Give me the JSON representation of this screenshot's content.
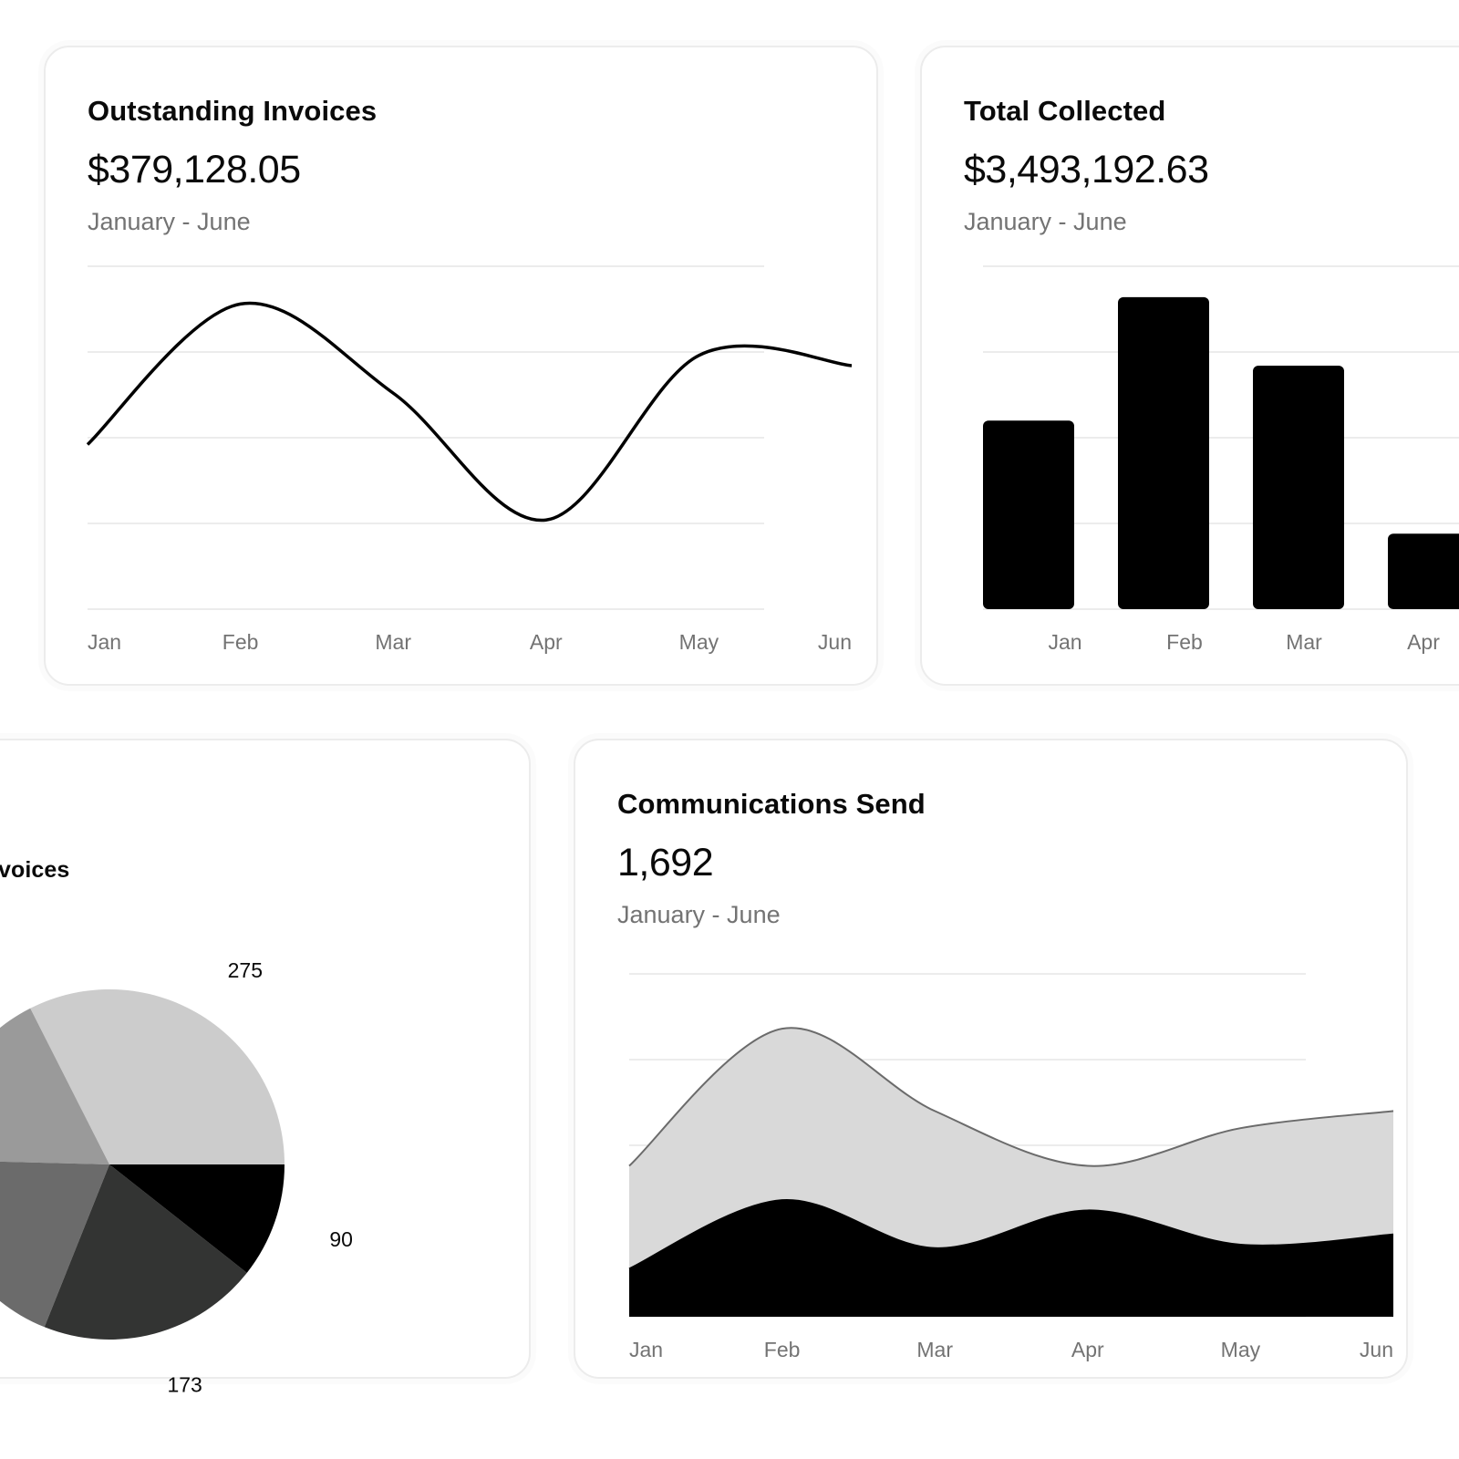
{
  "cards": {
    "outstanding": {
      "title": "Outstanding Invoices",
      "value": "$379,128.05",
      "period": "January - June"
    },
    "collected": {
      "title": "Total Collected",
      "value": "$3,493,192.63",
      "period": "January - June"
    },
    "invoices": {
      "title_visible": "voices"
    },
    "communications": {
      "title": "Communications Send",
      "value": "1,692",
      "period": "January - June"
    }
  },
  "colors": {
    "line": "#000000",
    "bar": "#000000",
    "grid": "#ececec",
    "area_back": "#d9d9d9",
    "area_back_stroke": "#6b6b6b",
    "area_front": "#000000",
    "pie": [
      "#cccccc",
      "#9a9a9a",
      "#6b6b6b",
      "#333433",
      "#000000"
    ]
  },
  "chart_data": [
    {
      "type": "line",
      "categories": [
        "Jan",
        "Feb",
        "Mar",
        "Apr",
        "May",
        "Jun"
      ],
      "series": [
        {
          "values": [
            48,
            89,
            63,
            26,
            74,
            71
          ]
        }
      ],
      "ylim": [
        0,
        100
      ],
      "grid": true
    },
    {
      "type": "bar",
      "categories": [
        "Jan",
        "Feb",
        "Mar",
        "Apr"
      ],
      "values": [
        55,
        91,
        71,
        22
      ],
      "ylim": [
        0,
        100
      ],
      "grid": true
    },
    {
      "type": "pie",
      "slices": [
        {
          "value": 275,
          "label": "275"
        },
        {
          "value": 145,
          "label": ""
        },
        {
          "value": 164,
          "label": ""
        },
        {
          "value": 173,
          "label": "173"
        },
        {
          "value": 90,
          "label": "90"
        }
      ]
    },
    {
      "type": "area",
      "categories": [
        "Jan",
        "Feb",
        "Mar",
        "Apr",
        "May",
        "Jun"
      ],
      "series": [
        {
          "values": [
            44,
            84,
            60,
            44,
            55,
            60
          ]
        },
        {
          "values": [
            14,
            34,
            20,
            31,
            21,
            24
          ]
        }
      ],
      "ylim": [
        0,
        100
      ],
      "grid": true
    }
  ]
}
